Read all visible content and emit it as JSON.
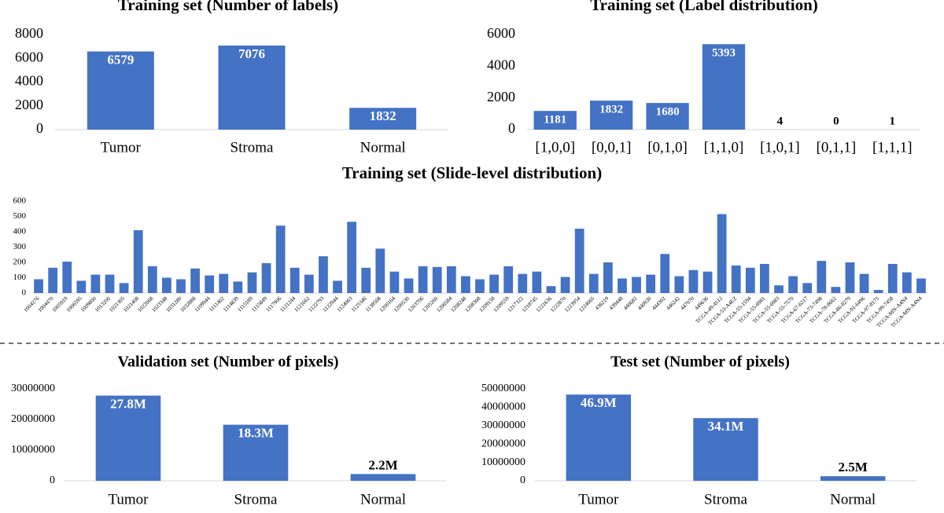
{
  "chart_data": [
    {
      "type": "bar",
      "title": "Training set (Number of labels)",
      "categories": [
        "Tumor",
        "Stroma",
        "Normal"
      ],
      "values": [
        6579,
        7076,
        1832
      ],
      "color": "#4472c4",
      "ylim": [
        0,
        8000
      ],
      "yticks": [
        0,
        2000,
        4000,
        6000,
        8000
      ],
      "grid": false
    },
    {
      "type": "bar",
      "title": "Training set (Label distribution)",
      "categories": [
        "[1,0,0]",
        "[0,0,1]",
        "[0,1,0]",
        "[1,1,0]",
        "[1,0,1]",
        "[0,1,1]",
        "[1,1,1]"
      ],
      "values": [
        1181,
        1832,
        1680,
        5393,
        4,
        0,
        1
      ],
      "color": "#4472c4",
      "ylim": [
        0,
        6000
      ],
      "yticks": [
        0,
        2000,
        4000,
        6000
      ],
      "grid": false
    },
    {
      "type": "bar",
      "title": "Training set (Slide-level distribution)",
      "categories": [
        "1004276",
        "1004470",
        "1005919",
        "1006595",
        "1009800",
        "1013200",
        "1021305",
        "1021408",
        "1022068",
        "1023348",
        "1031280",
        "1032888",
        "1109944",
        "1111462",
        "1114839",
        "1115189",
        "1115849",
        "1117906",
        "1121244",
        "1121662",
        "1122793",
        "1122944",
        "1124063",
        "1125346",
        "1138508",
        "1200164",
        "1200530",
        "1203706",
        "1205260",
        "1206584",
        "1208248",
        "1208368",
        "1209158",
        "1209559",
        "1217322",
        "1218745",
        "1221636",
        "1222870",
        "1223954",
        "1224065",
        "436219",
        "439448",
        "440682",
        "440930",
        "444302",
        "446242",
        "447070",
        "449636",
        "TCGA-49-4512",
        "TCGA-53-A4EZ",
        "TCGA-55-1594",
        "TCGA-55-6981",
        "TCGA-55-6983",
        "TCGA-55-7570",
        "TCGA-67-6217",
        "TCGA-73-7498",
        "TCGA-78-8662",
        "TCGA-86-8279",
        "TCGA-91-6496",
        "TCGA-97-8175",
        "TCGA-99-7458",
        "TCGA-MN-A4N4",
        "TCGA-MN-A4N4"
      ],
      "values": [
        90,
        165,
        205,
        80,
        120,
        120,
        65,
        410,
        175,
        100,
        90,
        160,
        115,
        125,
        75,
        135,
        195,
        440,
        165,
        120,
        240,
        80,
        465,
        165,
        290,
        140,
        95,
        175,
        170,
        175,
        110,
        90,
        120,
        175,
        125,
        140,
        45,
        105,
        420,
        125,
        200,
        95,
        105,
        120,
        255,
        110,
        150,
        140,
        515,
        180,
        165,
        190,
        50,
        110,
        65,
        210,
        40,
        200,
        125,
        20,
        190,
        135,
        95
      ],
      "color": "#4472c4",
      "ylim": [
        0,
        600
      ],
      "yticks": [
        0,
        100,
        200,
        300,
        400,
        500,
        600
      ],
      "grid": false
    },
    {
      "type": "bar",
      "title": "Validation set (Number of pixels)",
      "categories": [
        "Tumor",
        "Stroma",
        "Normal"
      ],
      "values": [
        27800000,
        18300000,
        2200000
      ],
      "value_labels": [
        "27.8M",
        "18.3M",
        "2.2M"
      ],
      "color": "#4472c4",
      "ylim": [
        0,
        30000000
      ],
      "yticks": [
        0,
        10000000,
        20000000,
        30000000
      ],
      "grid": false
    },
    {
      "type": "bar",
      "title": "Test set (Number of pixels)",
      "categories": [
        "Tumor",
        "Stroma",
        "Normal"
      ],
      "values": [
        46900000,
        34100000,
        2500000
      ],
      "value_labels": [
        "46.9M",
        "34.1M",
        "2.5M"
      ],
      "color": "#4472c4",
      "ylim": [
        0,
        50000000
      ],
      "yticks": [
        0,
        10000000,
        20000000,
        30000000,
        40000000,
        50000000
      ],
      "grid": false
    }
  ]
}
